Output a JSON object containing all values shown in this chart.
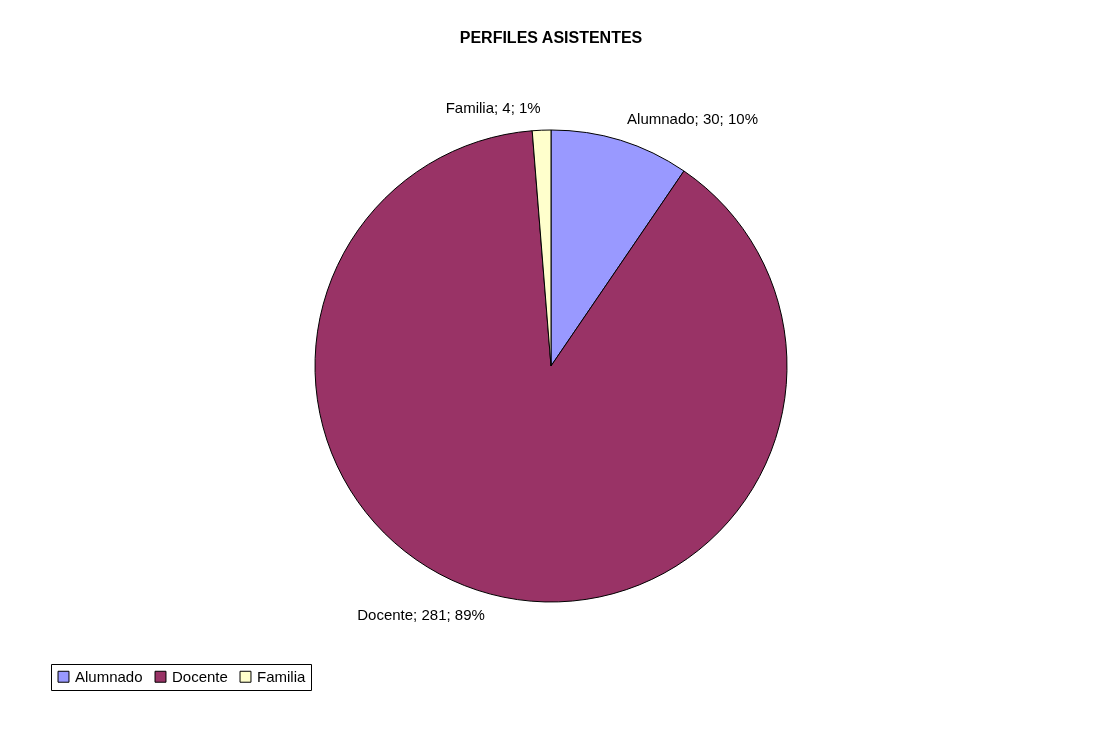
{
  "chart_data": {
    "type": "pie",
    "title": "PERFILES ASISTENTES",
    "categories": [
      "Alumnado",
      "Docente",
      "Familia"
    ],
    "values": [
      30,
      281,
      4
    ],
    "colors": [
      "#9999ff",
      "#993366",
      "#ffffcc"
    ],
    "value_labels": [
      "Alumnado; 30; 10%",
      "Docente; 281; 89%",
      "Familia; 4; 1%"
    ],
    "legend": "bottom"
  }
}
